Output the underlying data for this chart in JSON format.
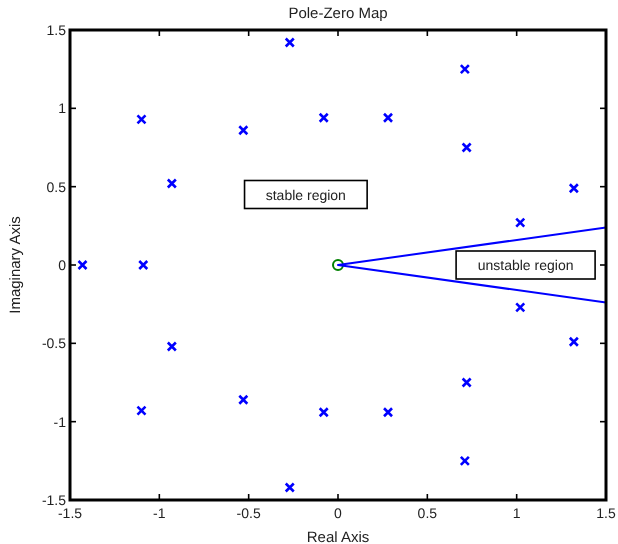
{
  "chart_data": {
    "type": "scatter",
    "title": "Pole-Zero Map",
    "xlabel": "Real Axis",
    "ylabel": "Imaginary Axis",
    "xlim": [
      -1.5,
      1.5
    ],
    "ylim": [
      -1.5,
      1.5
    ],
    "xticks": [
      -1.5,
      -1,
      -0.5,
      0,
      0.5,
      1,
      1.5
    ],
    "yticks": [
      -1.5,
      -1,
      -0.5,
      0,
      0.5,
      1,
      1.5
    ],
    "grid": false,
    "series": [
      {
        "marker": "cross",
        "color": "#0000ff",
        "x": [
          -0.27,
          0.71,
          -1.1,
          -0.53,
          -0.08,
          0.28,
          0.72,
          -0.93,
          1.32,
          1.02,
          -1.43,
          -1.09,
          1.02,
          1.32,
          -0.93,
          0.72,
          0.28,
          -0.08,
          -0.53,
          -1.1,
          0.71,
          -0.27
        ],
        "values": [
          1.42,
          1.25,
          0.93,
          0.86,
          0.94,
          0.94,
          0.75,
          0.52,
          0.49,
          0.27,
          0,
          0,
          -0.27,
          -0.49,
          -0.52,
          -0.75,
          -0.94,
          -0.94,
          -0.86,
          -0.93,
          -1.25,
          -1.42
        ]
      },
      {
        "marker": "circle",
        "color": "#008000",
        "x": [
          0
        ],
        "values": [
          0
        ]
      },
      {
        "type": "line",
        "marker": "none",
        "color": "#0000ff",
        "x": [
          1.5,
          0,
          1.5
        ],
        "values": [
          0.24,
          0,
          -0.24
        ]
      }
    ],
    "annotations": [
      "stable region",
      "unstable region"
    ]
  }
}
